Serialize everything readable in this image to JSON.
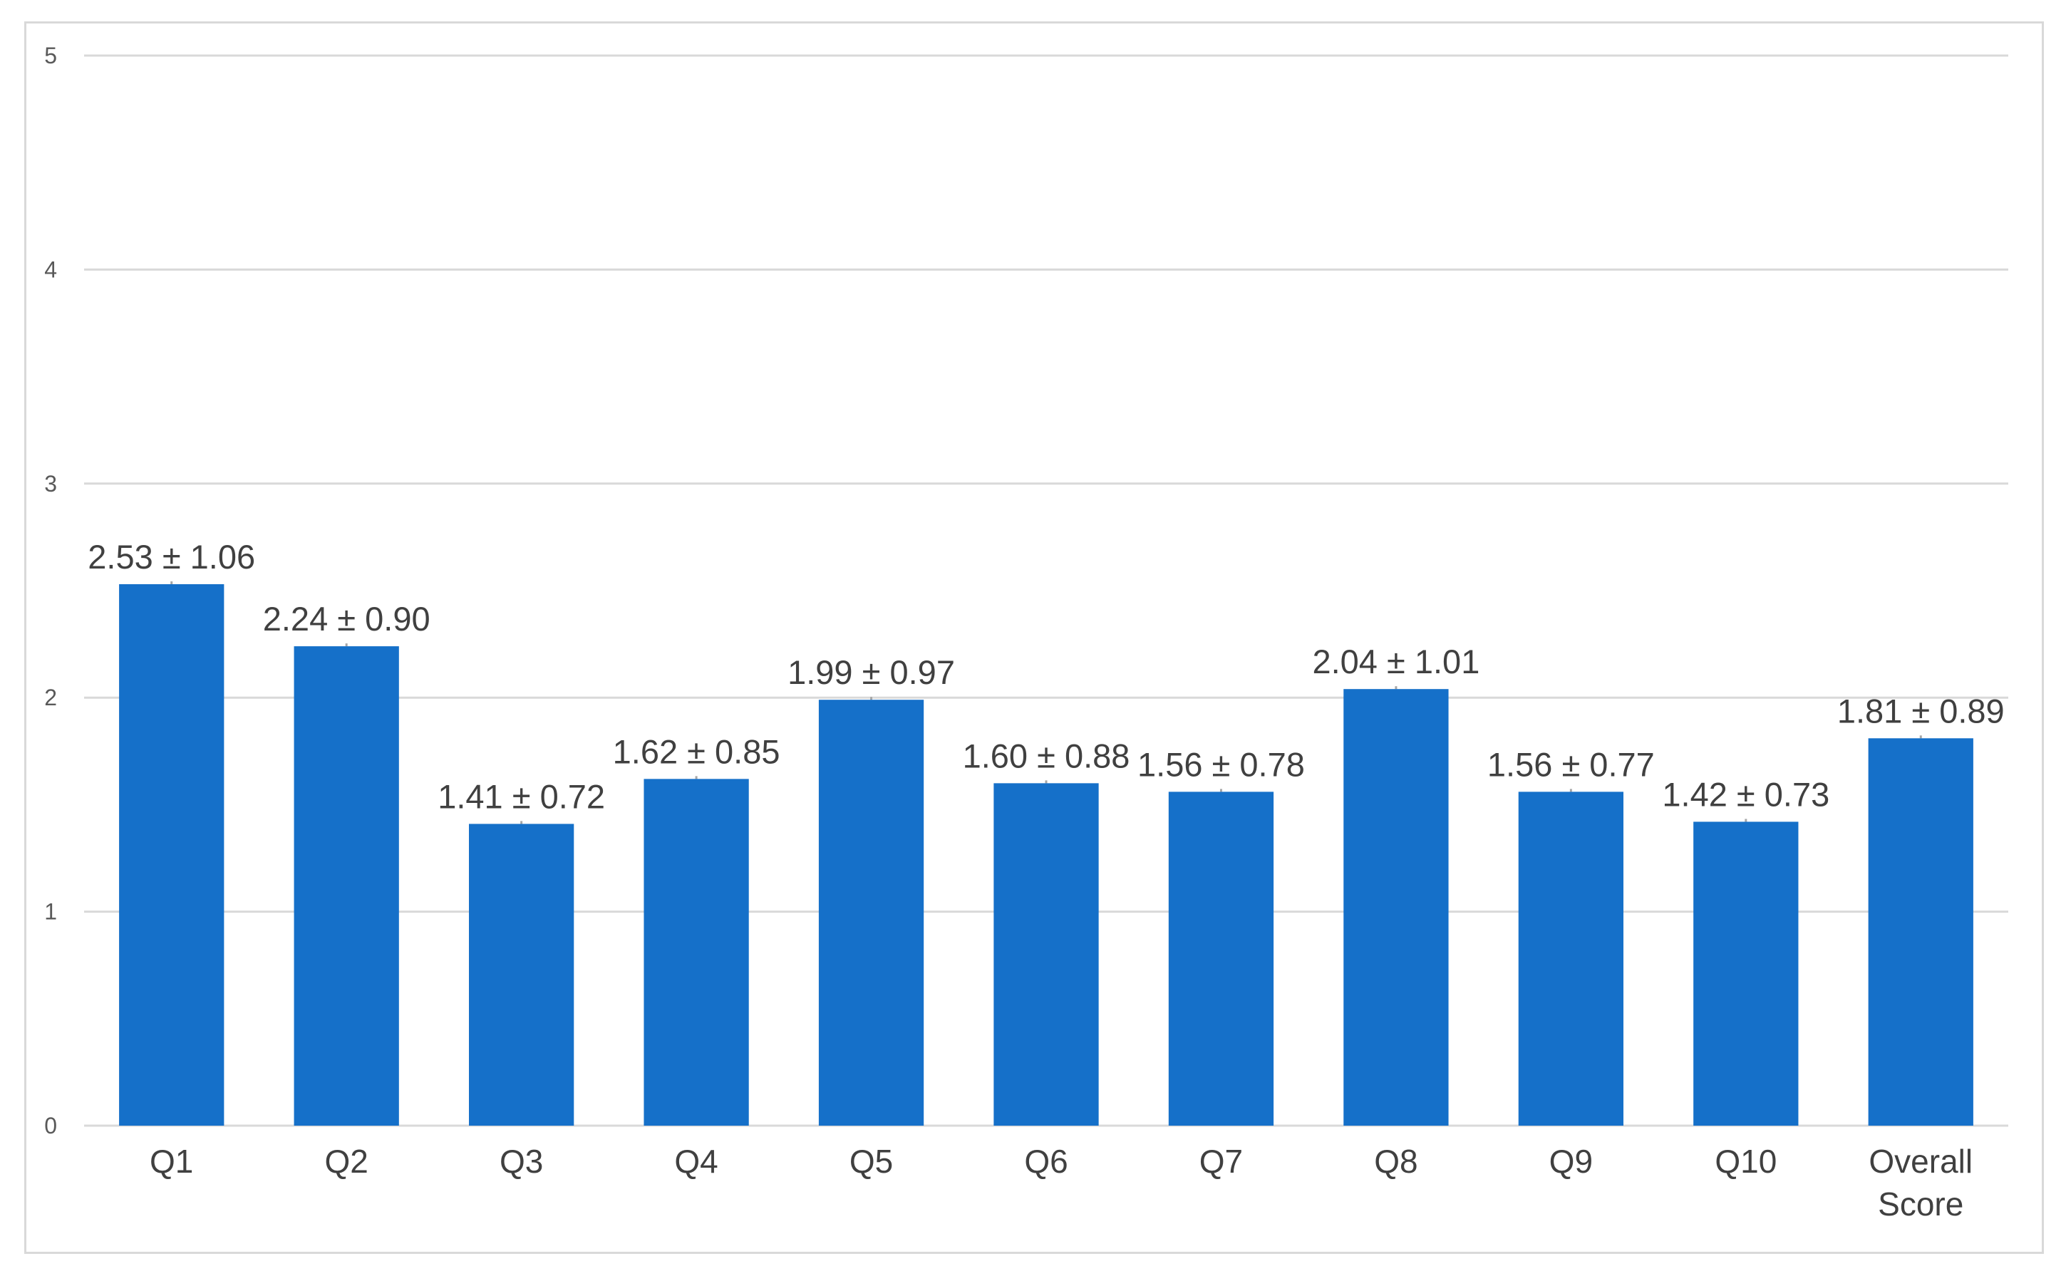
{
  "chart_data": {
    "type": "bar",
    "title": "",
    "xlabel": "",
    "ylabel": "",
    "ylim": [
      0,
      5
    ],
    "yticks": [
      0,
      1,
      2,
      3,
      4,
      5
    ],
    "grid": true,
    "legend": "none",
    "bar_color": "#1570C9",
    "categories": [
      "Q1",
      "Q2",
      "Q3",
      "Q4",
      "Q5",
      "Q6",
      "Q7",
      "Q8",
      "Q9",
      "Q10",
      "Overall Score"
    ],
    "values": [
      2.53,
      2.24,
      1.41,
      1.62,
      1.99,
      1.6,
      1.56,
      2.04,
      1.56,
      1.42,
      1.81
    ],
    "sd": [
      1.06,
      0.9,
      0.72,
      0.85,
      0.97,
      0.88,
      0.78,
      1.01,
      0.77,
      0.73,
      0.89
    ],
    "data_labels": [
      "2.53 ± 1.06",
      "2.24 ± 0.90",
      "1.41 ± 0.72",
      "1.62 ± 0.85",
      "1.99 ± 0.97",
      "1.60 ± 0.88",
      "1.56 ± 0.78",
      "2.04 ± 1.01",
      "1.56 ± 0.77",
      "1.42 ± 0.73",
      "1.81 ± 0.89"
    ]
  }
}
